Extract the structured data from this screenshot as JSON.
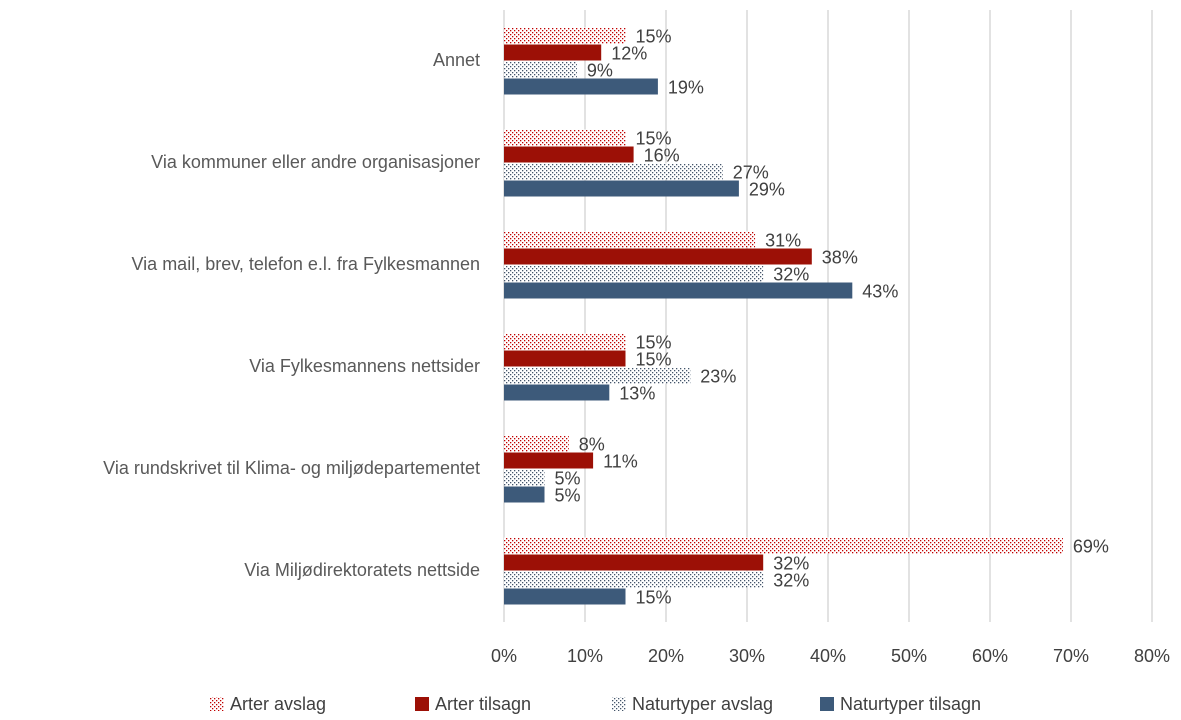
{
  "chart_data": {
    "type": "hbar",
    "categories": [
      "Annet",
      "Via kommuner eller andre organisasjoner",
      "Via mail, brev, telefon e.l. fra Fylkesmannen",
      "Via Fylkesmannens nettsider",
      "Via rundskrivet til Klima- og miljødepartementet",
      "Via Miljødirektoratets nettside"
    ],
    "series": [
      {
        "name": "Arter avslag",
        "color": "#c00000",
        "pattern": "dots",
        "values": [
          15,
          15,
          31,
          15,
          8,
          69
        ],
        "value_labels": [
          "15%",
          "15%",
          "31%",
          "15%",
          "8%",
          "69%"
        ]
      },
      {
        "name": "Arter tilsagn",
        "color": "#9c1006",
        "values": [
          12,
          16,
          38,
          15,
          11,
          32
        ],
        "value_labels": [
          "12%",
          "16%",
          "38%",
          "15%",
          "11%",
          "32%"
        ]
      },
      {
        "name": "Naturtyper avslag",
        "color": "#44546a",
        "pattern": "dots",
        "values": [
          9,
          27,
          32,
          23,
          5,
          32
        ],
        "value_labels": [
          "9%",
          "27%",
          "32%",
          "23%",
          "5%",
          "32%"
        ]
      },
      {
        "name": "Naturtyper tilsagn",
        "color": "#3d5a7a",
        "values": [
          19,
          29,
          43,
          13,
          5,
          15
        ],
        "value_labels": [
          "19%",
          "29%",
          "43%",
          "13%",
          "5%",
          "15%"
        ]
      }
    ],
    "xlim": [
      0,
      80
    ],
    "xticks": [
      {
        "value": 0,
        "label": "0%"
      },
      {
        "value": 10,
        "label": "10%"
      },
      {
        "value": 20,
        "label": "20%"
      },
      {
        "value": 30,
        "label": "30%"
      },
      {
        "value": 40,
        "label": "40%"
      },
      {
        "value": 50,
        "label": "50%"
      },
      {
        "value": 60,
        "label": "60%"
      },
      {
        "value": 70,
        "label": "70%"
      },
      {
        "value": 80,
        "label": "80%"
      }
    ],
    "grid": true,
    "legend": "bottom"
  }
}
